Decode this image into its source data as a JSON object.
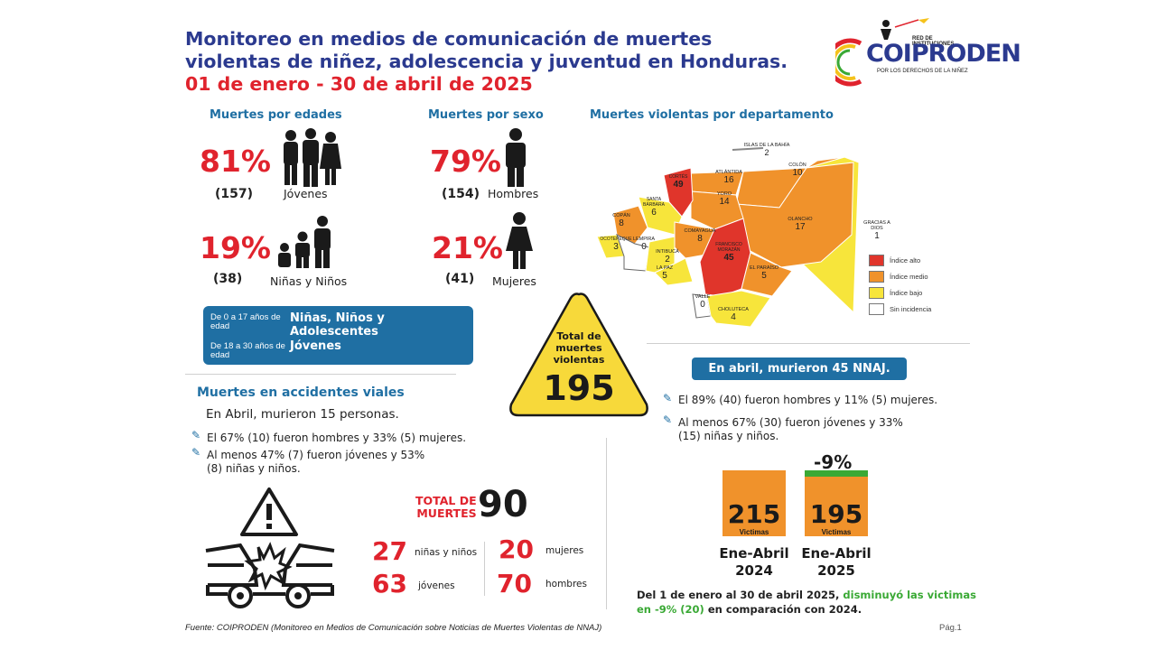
{
  "header": {
    "title_line1": "Monitoreo en medios de comunicación de muertes",
    "title_line2": "violentas de niñez, adolescencia y juventud en Honduras.",
    "dates": "01 de enero - 30 de abril de 2025"
  },
  "logo": {
    "name": "COIPRODEN",
    "top_text": "RED DE INSTITUCIONES",
    "bottom_text": "POR LOS DERECHOS DE LA NIÑEZ"
  },
  "ages": {
    "heading": "Muertes por edades",
    "youth_pct": "81%",
    "youth_count": "(157)",
    "youth_label": "Jóvenes",
    "kids_pct": "19%",
    "kids_count": "(38)",
    "kids_label": "Niñas y Niños"
  },
  "sex": {
    "heading": "Muertes por sexo",
    "men_pct": "79%",
    "men_count": "(154)",
    "men_label": "Hombres",
    "women_pct": "21%",
    "women_count": "(41)",
    "women_label": "Mujeres"
  },
  "definitions": {
    "range1": "De 0 a 17 años de edad",
    "label1": "Niñas, Niños y Adolescentes",
    "range2": "De 18 a 30 años de edad",
    "label2": "Jóvenes"
  },
  "total": {
    "label": "Total de muertes violentas",
    "value": "195"
  },
  "map": {
    "heading": "Muertes violentas por departamento",
    "departments": [
      {
        "name": "ISLAS DE LA BAHÍA",
        "value": "2"
      },
      {
        "name": "CORTÉS",
        "value": "49"
      },
      {
        "name": "ATLÁNTIDA",
        "value": "16"
      },
      {
        "name": "COLÓN",
        "value": "10"
      },
      {
        "name": "GRACIAS A DIOS",
        "value": "1"
      },
      {
        "name": "SANTA BÁRBARA",
        "value": "6"
      },
      {
        "name": "YORO",
        "value": "14"
      },
      {
        "name": "COPÁN",
        "value": "8"
      },
      {
        "name": "OLANCHO",
        "value": "17"
      },
      {
        "name": "OCOTEPEQUE",
        "value": "3"
      },
      {
        "name": "LEMPIRA",
        "value": "0"
      },
      {
        "name": "COMAYAGUA",
        "value": "8"
      },
      {
        "name": "INTIBUCÁ",
        "value": "2"
      },
      {
        "name": "FRANCISCO MORAZÁN",
        "value": "45"
      },
      {
        "name": "LA PAZ",
        "value": "5"
      },
      {
        "name": "EL PARAÍSO",
        "value": "5"
      },
      {
        "name": "VALLE",
        "value": "0"
      },
      {
        "name": "CHOLUTECA",
        "value": "4"
      }
    ],
    "legend": [
      {
        "label": "Índice alto",
        "color": "#e0352b"
      },
      {
        "label": "Índice medio",
        "color": "#f0922b"
      },
      {
        "label": "Índice bajo",
        "color": "#f7e53b"
      },
      {
        "label": "Sin incidencia",
        "color": "#ffffff"
      }
    ]
  },
  "april": {
    "banner": "En abril, murieron 45 NNAJ.",
    "bullet1": "El 89% (40) fueron hombres y 11% (5) mujeres.",
    "bullet2_line1": "Al menos 67% (30) fueron jóvenes y 33%",
    "bullet2_line2": "(15) niñas y niños."
  },
  "road": {
    "heading": "Muertes en accidentes viales",
    "subheading": "En Abril, murieron 15 personas.",
    "bullet1": "El 67% (10) fueron hombres y 33% (5) mujeres.",
    "bullet2_line1": "Al menos 47% (7) fueron jóvenes y 53%",
    "bullet2_line2": "(8) niñas y niños.",
    "total_label_line1": "TOTAL DE",
    "total_label_line2": "MUERTES",
    "total_value": "90",
    "kids_value": "27",
    "kids_label": "niñas y niños",
    "youth_value": "63",
    "youth_label": "jóvenes",
    "women_value": "20",
    "women_label": "mujeres",
    "men_value": "70",
    "men_label": "hombres"
  },
  "comparison": {
    "change": "-9%",
    "bar1_value": "215",
    "bar1_sub": "Victimas",
    "bar1_label_line1": "Ene-Abril",
    "bar1_label_line2": "2024",
    "bar2_value": "195",
    "bar2_sub": "Victimas",
    "bar2_label_line1": "Ene-Abril",
    "bar2_label_line2": "2025",
    "note_line1_a": "Del 1 de enero al 30 de abril 2025,",
    "note_line1_b": "disminuyó las victimas",
    "note_line2_a": "en -9% (20)",
    "note_line2_b": "en comparación con 2024."
  },
  "chart_data": {
    "type": "bar",
    "categories": [
      "Ene-Abril 2024",
      "Ene-Abril 2025"
    ],
    "values": [
      215,
      195
    ],
    "ylim": [
      0,
      215
    ]
  },
  "footer": {
    "source": "Fuente: COIPRODEN (Monitoreo en Medios de Comunicación sobre Noticias de Muertes Violentas de NNAJ)",
    "page": "Pág.1"
  }
}
